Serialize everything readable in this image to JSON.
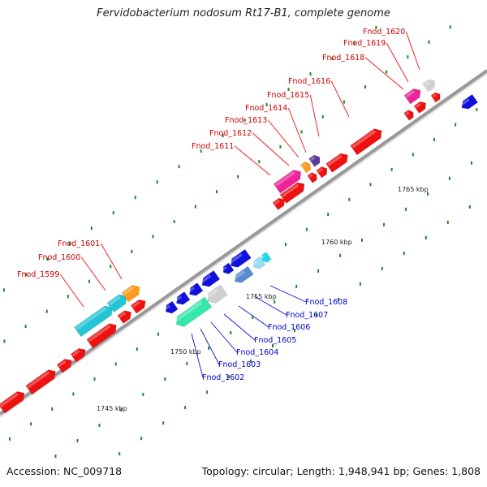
{
  "title": "Fervidobacterium nodosum Rt17-B1, complete genome",
  "footer": {
    "accession": "Accession: NC_009718",
    "summary": "Topology: circular; Length: 1,948,941 bp; Genes: 1,808"
  },
  "colors": {
    "forward_gene": "#ee1111",
    "reverse_gene": "#1111dd",
    "backbone": "#999999",
    "forward_label": "#cc0000",
    "reverse_label": "#0000cc",
    "tick_mark": "#1a8a1a"
  },
  "scale_labels": [
    "1745 kbp",
    "1750 kbp",
    "1755 kbp",
    "1760 kbp",
    "1765 kbp"
  ],
  "forward_labels": [
    "Fnod_1599",
    "Fnod_1600",
    "Fnod_1601",
    "Fnod_1611",
    "Fnod_1612",
    "Fnod_1613",
    "Fnod_1614",
    "Fnod_1615",
    "Fnod_1616",
    "Fnod_1618",
    "Fnod_1619",
    "Fnod_1620"
  ],
  "reverse_labels": [
    "Fnod_1602",
    "Fnod_1603",
    "Fnod_1604",
    "Fnod_1605",
    "Fnod_1606",
    "Fnod_1607",
    "Fnod_1608"
  ]
}
